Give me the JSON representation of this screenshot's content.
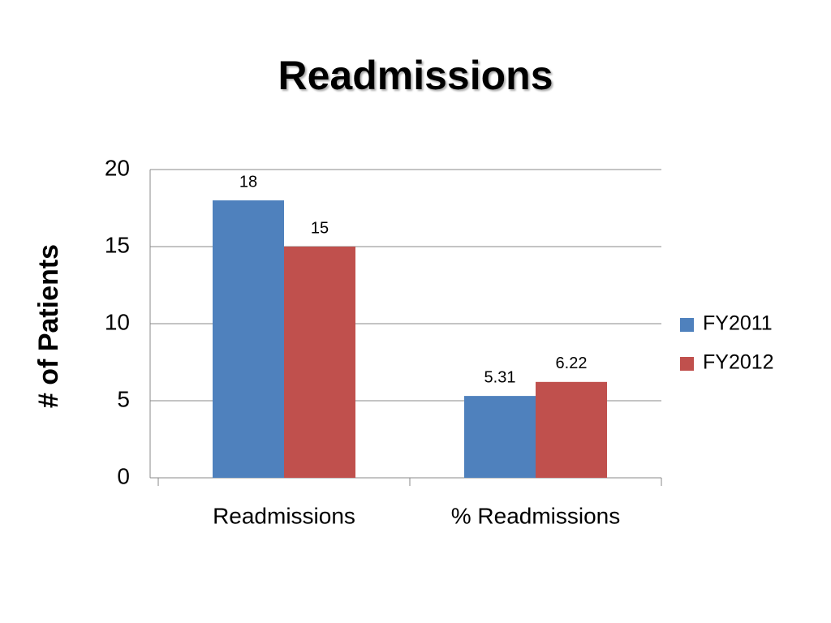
{
  "chart_data": {
    "type": "bar",
    "title": "Readmissions",
    "y_label": "# of Patients",
    "categories": [
      "Readmissions",
      "% Readmissions"
    ],
    "series": [
      {
        "name": "FY2011",
        "color": "#4f81bd",
        "values": [
          18,
          5.31
        ]
      },
      {
        "name": "FY2012",
        "color": "#c0504d",
        "values": [
          15,
          6.22
        ]
      }
    ],
    "ylim": [
      0,
      20
    ],
    "yticks": [
      0,
      5,
      10,
      15,
      20
    ],
    "grid": true,
    "legend": "right"
  }
}
